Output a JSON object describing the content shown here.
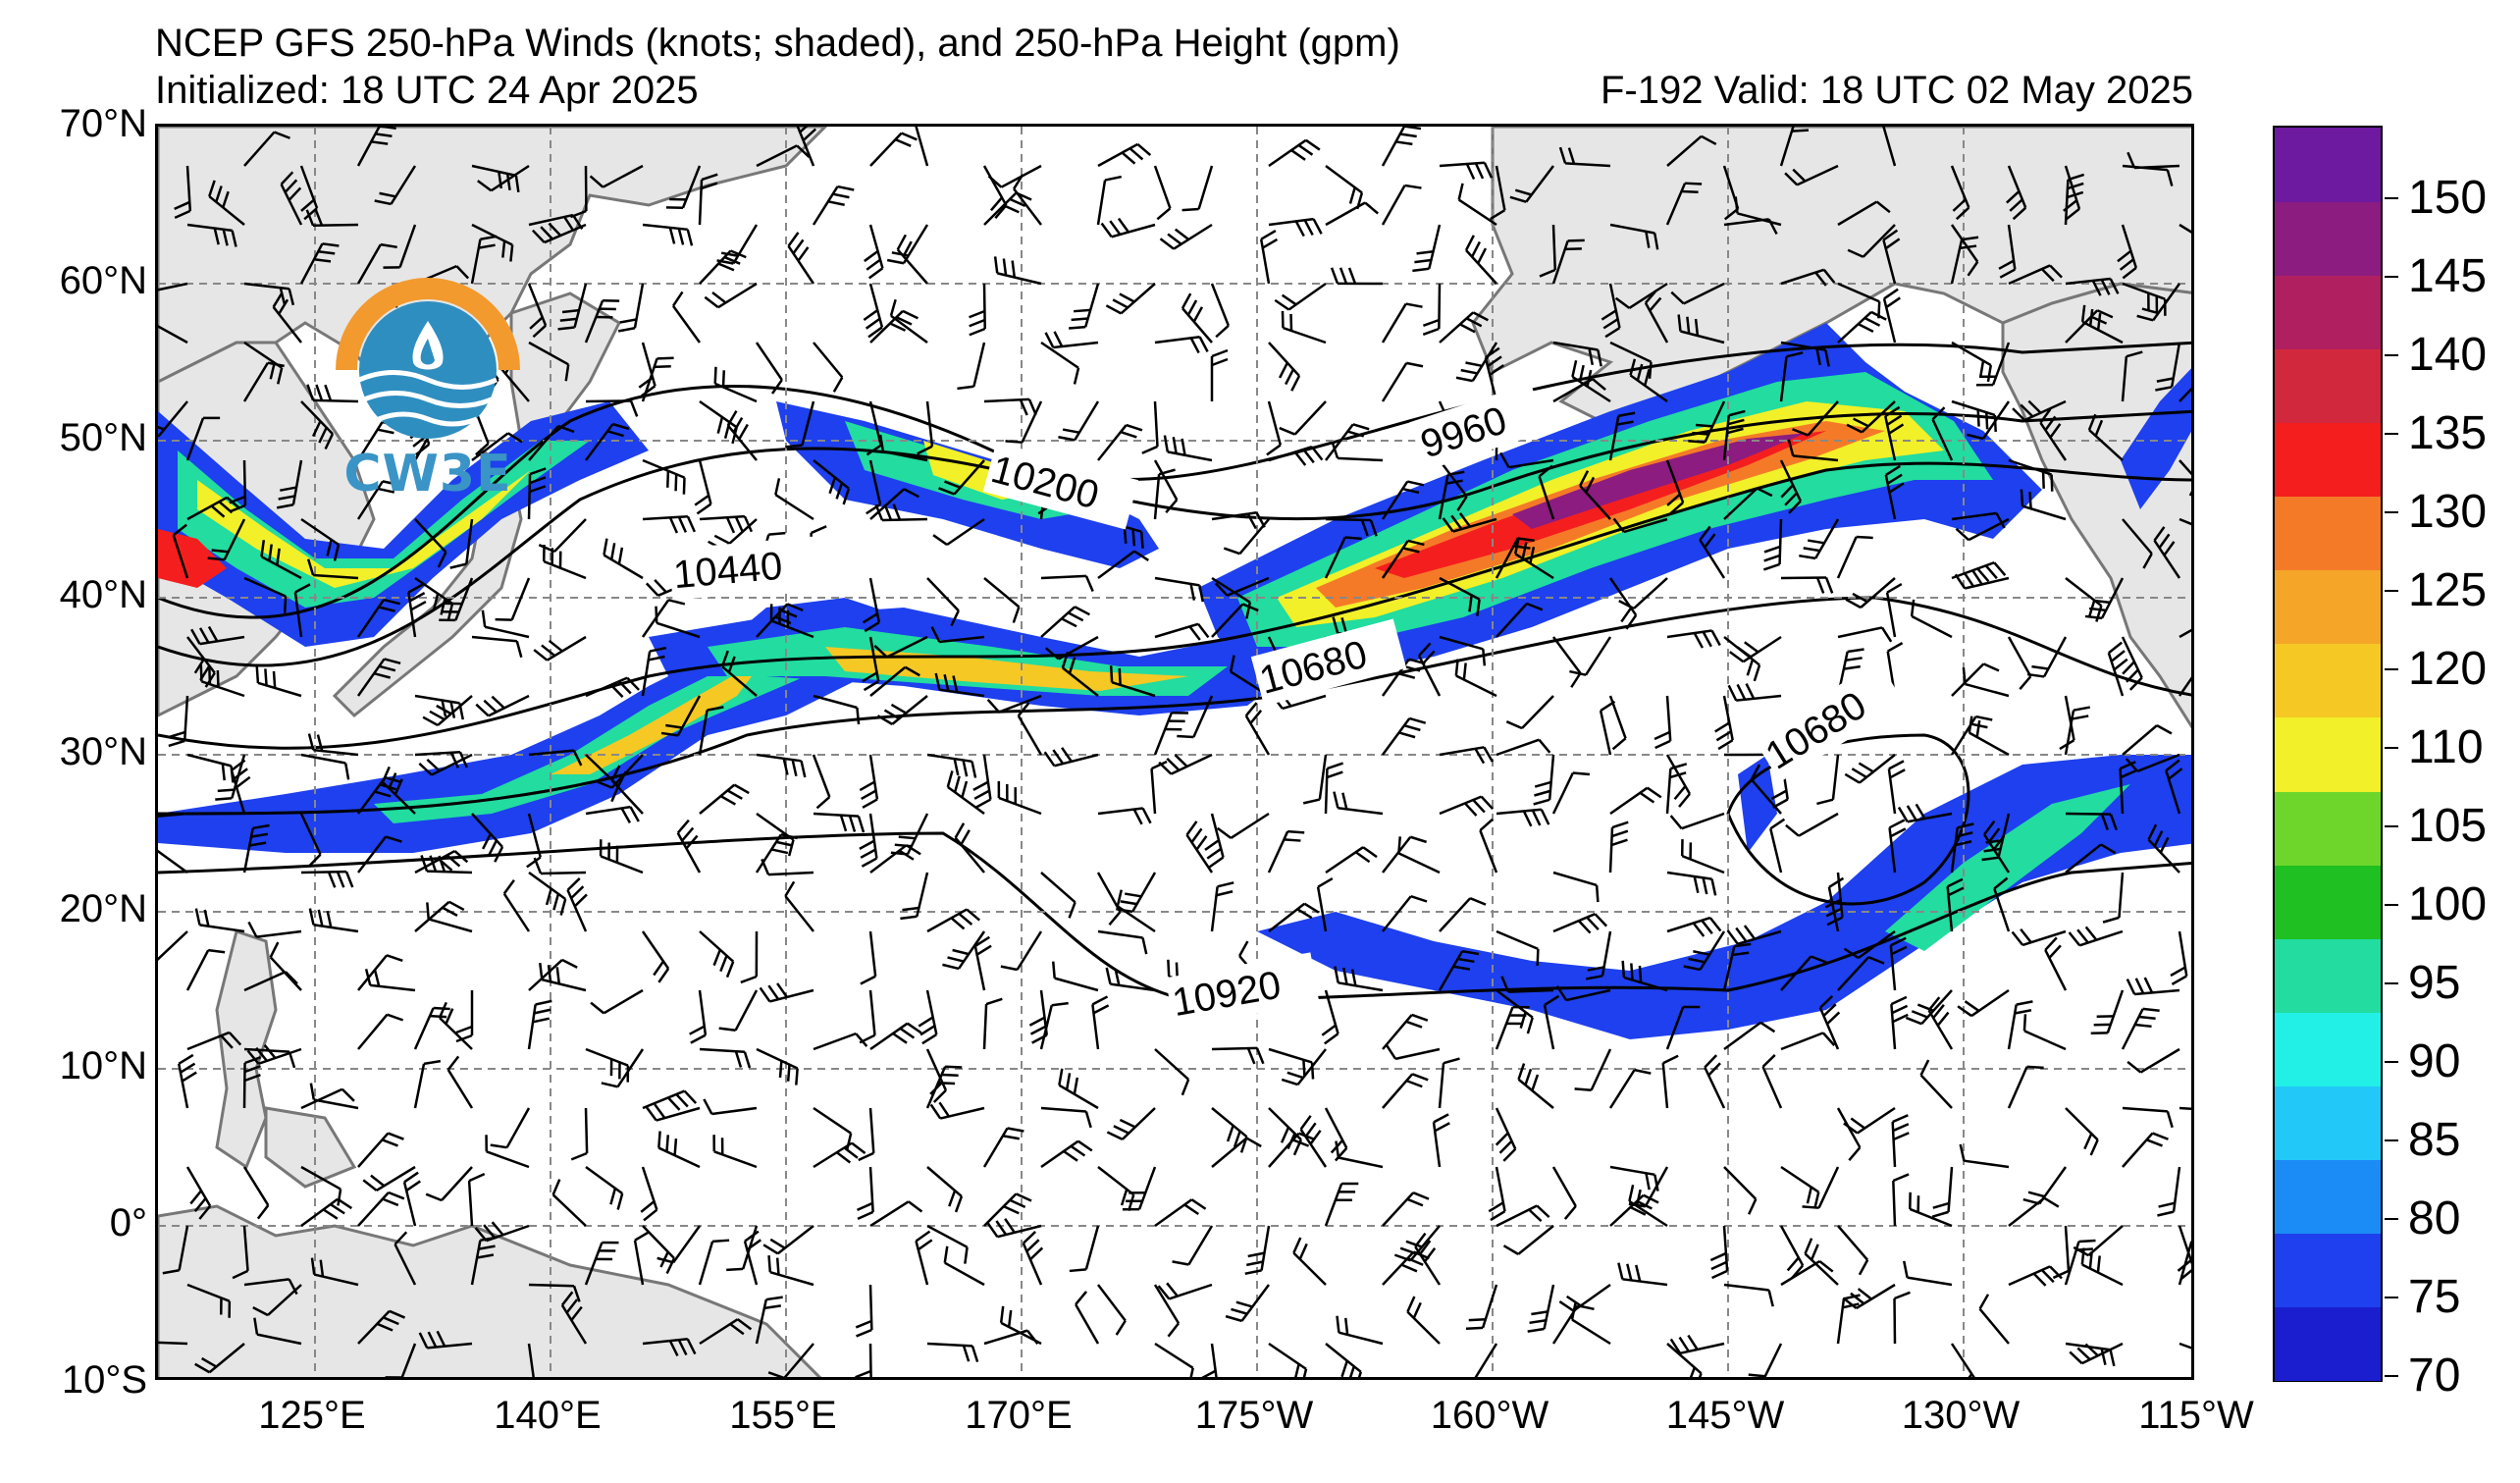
{
  "header": {
    "title": "NCEP GFS 250-hPa Winds (knots; shaded), and 250-hPa Height (gpm)",
    "initialized": "Initialized: 18 UTC 24 Apr 2025",
    "valid": "F-192  Valid: 18 UTC 02 May 2025"
  },
  "logo": {
    "text": "CW3E",
    "icon": "cw3e-logo-icon"
  },
  "map": {
    "lat_labels": [
      "70°N",
      "60°N",
      "50°N",
      "40°N",
      "30°N",
      "20°N",
      "10°N",
      "0°",
      "10°S"
    ],
    "lon_labels": [
      "125°E",
      "140°E",
      "155°E",
      "170°E",
      "175°W",
      "160°W",
      "145°W",
      "130°W",
      "115°W"
    ],
    "lat_range": [
      -10,
      70
    ],
    "lon_range": [
      115,
      245
    ],
    "contour_labels": [
      "9960",
      "10200",
      "10440",
      "10680",
      "10680",
      "10920"
    ],
    "grid": "dashed"
  },
  "colorbar": {
    "labels": [
      "150",
      "145",
      "140",
      "135",
      "130",
      "125",
      "120",
      "110",
      "105",
      "100",
      "95",
      "90",
      "85",
      "80",
      "75",
      "70"
    ],
    "colors": [
      "#1a1ecf",
      "#1e40ee",
      "#1b8cf5",
      "#22c8f8",
      "#22f0e6",
      "#22dca0",
      "#1ec022",
      "#6ed62a",
      "#f2f028",
      "#f5c824",
      "#f5a528",
      "#f57a28",
      "#f51e1e",
      "#d2283e",
      "#b02060",
      "#8c1c80",
      "#6e1aa0"
    ]
  }
}
